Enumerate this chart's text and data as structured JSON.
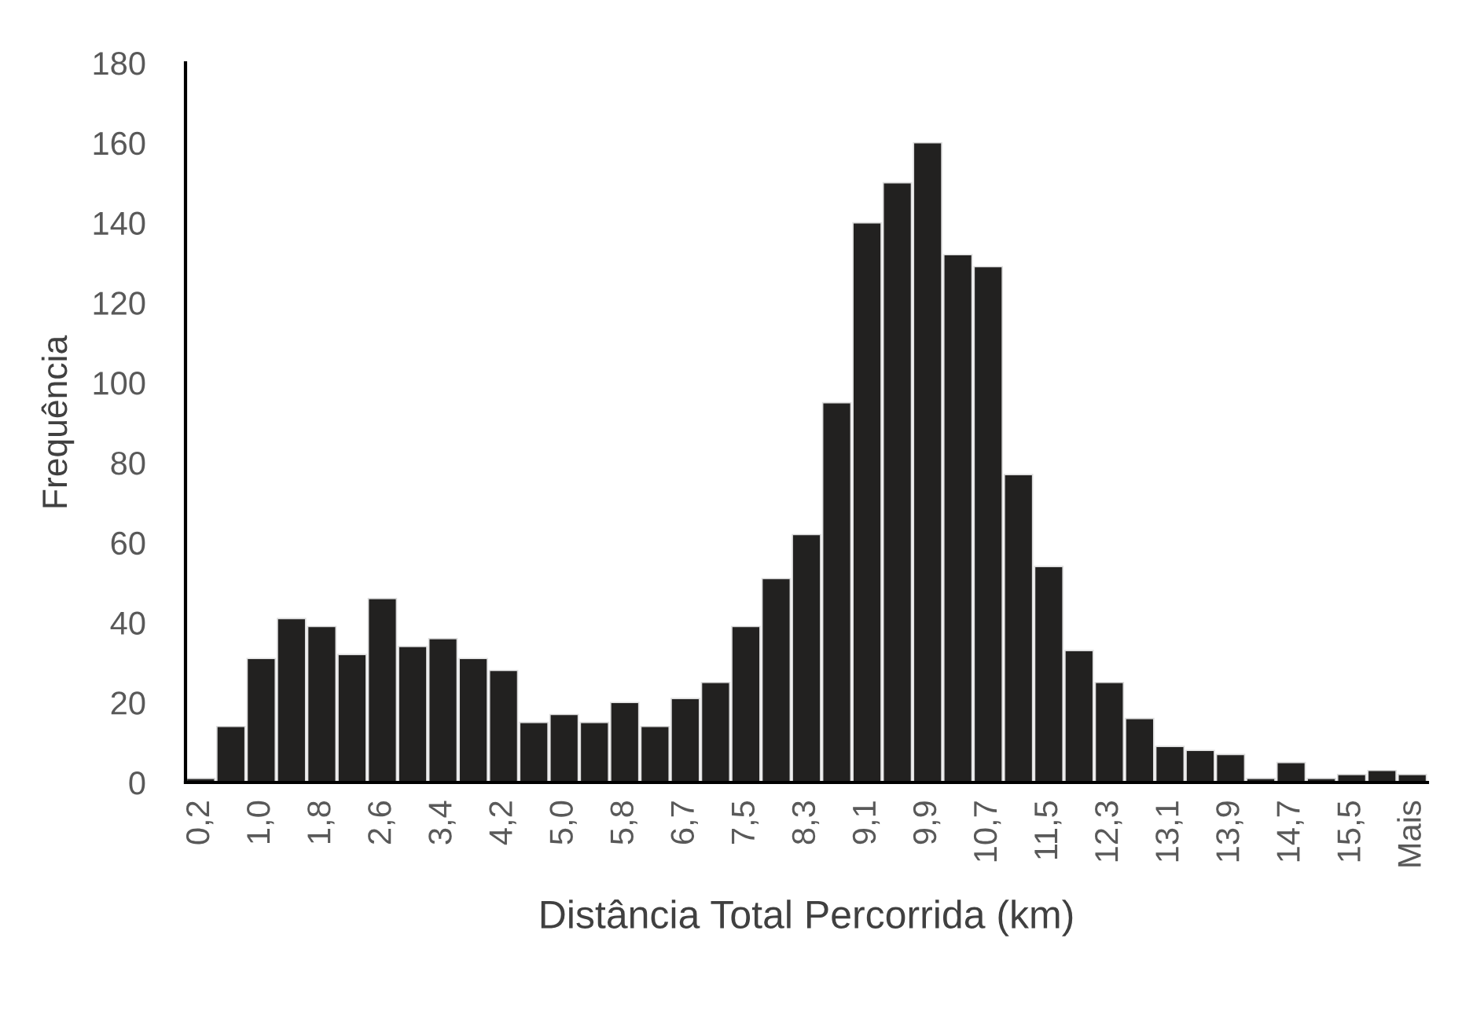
{
  "chart_data": {
    "type": "bar",
    "xlabel": "Distância Total Percorrida (km)",
    "ylabel": "Frequência",
    "categories": [
      "0,2",
      null,
      "1,0",
      null,
      "1,8",
      null,
      "2,6",
      null,
      "3,4",
      null,
      "4,2",
      null,
      "5,0",
      null,
      "5,8",
      null,
      "6,7",
      null,
      "7,5",
      null,
      "8,3",
      null,
      "9,1",
      null,
      "9,9",
      null,
      "10,7",
      null,
      "11,5",
      null,
      "12,3",
      null,
      "13,1",
      null,
      "13,9",
      null,
      "14,7",
      null,
      "15,5",
      null,
      "Mais"
    ],
    "values": [
      1,
      14,
      31,
      41,
      39,
      32,
      46,
      34,
      36,
      31,
      28,
      15,
      17,
      15,
      20,
      14,
      21,
      25,
      39,
      51,
      62,
      95,
      140,
      150,
      160,
      132,
      129,
      77,
      54,
      33,
      25,
      16,
      9,
      8,
      7,
      1,
      5,
      1,
      2,
      3,
      2
    ],
    "color": "#222120",
    "ylim": [
      0,
      180
    ],
    "yticks": [
      0,
      20,
      40,
      60,
      80,
      100,
      120,
      140,
      160,
      180
    ],
    "grid": false,
    "legend": false
  }
}
